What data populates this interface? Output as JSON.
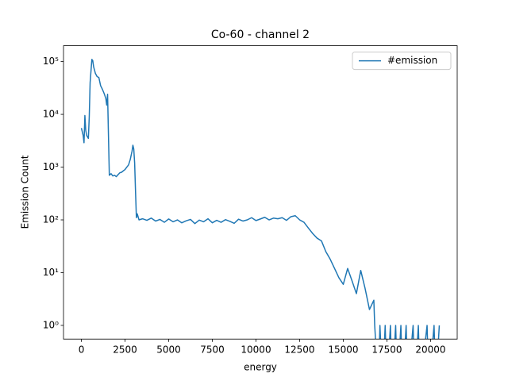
{
  "chart_data": {
    "type": "line",
    "title": "Co-60 - channel 2",
    "xlabel": "energy",
    "ylabel": "Emission Count",
    "yscale": "log",
    "legend": "upper right",
    "xlim": [
      -1025,
      21525
    ],
    "ylim": [
      0.55,
      200000
    ],
    "xticks": [
      0,
      2500,
      5000,
      7500,
      10000,
      12500,
      15000,
      17500,
      20000
    ],
    "yticks": [
      {
        "value": 1,
        "label": "10⁰"
      },
      {
        "value": 10,
        "label": "10¹"
      },
      {
        "value": 100,
        "label": "10²"
      },
      {
        "value": 1000,
        "label": "10³"
      },
      {
        "value": 10000,
        "label": "10⁴"
      },
      {
        "value": 100000,
        "label": "10⁵"
      }
    ],
    "x": [
      0,
      100,
      150,
      200,
      250,
      300,
      400,
      450,
      500,
      600,
      650,
      700,
      800,
      900,
      1000,
      1100,
      1200,
      1300,
      1400,
      1450,
      1500,
      1550,
      1600,
      1700,
      1800,
      1900,
      2000,
      2100,
      2200,
      2300,
      2400,
      2500,
      2600,
      2700,
      2800,
      2900,
      2950,
      3000,
      3050,
      3100,
      3150,
      3200,
      3300,
      3500,
      3750,
      4000,
      4250,
      4500,
      4750,
      5000,
      5250,
      5500,
      5750,
      6000,
      6250,
      6500,
      6750,
      7000,
      7250,
      7500,
      7750,
      8000,
      8250,
      8500,
      8750,
      9000,
      9250,
      9500,
      9750,
      10000,
      10250,
      10500,
      10750,
      11000,
      11250,
      11500,
      11750,
      12000,
      12250,
      12500,
      12750,
      13000,
      13250,
      13500,
      13750,
      14000,
      14250,
      14500,
      14750,
      15000,
      15250,
      15500,
      15750,
      16000,
      16250,
      16500,
      16750,
      16800,
      17000,
      17100,
      17250,
      17400,
      17500,
      17700,
      17800,
      18000,
      18100,
      18300,
      18400,
      18600,
      18700,
      19000,
      19100,
      19300,
      19400,
      19800,
      19900,
      20200,
      20300,
      20500
    ],
    "series": [
      {
        "name": "#emission",
        "color": "#1f77b4",
        "values": [
          5500,
          4000,
          2900,
          9500,
          5000,
          4000,
          3500,
          9000,
          40000,
          110000,
          105000,
          80000,
          60000,
          52000,
          50000,
          35000,
          30000,
          25000,
          20000,
          15000,
          24000,
          4000,
          700,
          750,
          680,
          700,
          660,
          720,
          780,
          800,
          850,
          900,
          1000,
          1100,
          1400,
          2000,
          2600,
          2200,
          1200,
          350,
          110,
          130,
          100,
          105,
          98,
          108,
          95,
          102,
          90,
          104,
          92,
          100,
          88,
          96,
          102,
          85,
          99,
          92,
          105,
          88,
          98,
          90,
          101,
          94,
          86,
          103,
          95,
          100,
          110,
          97,
          104,
          112,
          100,
          108,
          105,
          110,
          98,
          115,
          120,
          100,
          90,
          70,
          55,
          45,
          40,
          25,
          18,
          12,
          8,
          6,
          12,
          7,
          4,
          11,
          5,
          2,
          3,
          1,
          0,
          1,
          0,
          1,
          0,
          1,
          0,
          1,
          0,
          1,
          0,
          1,
          0,
          1,
          0,
          1,
          0,
          1,
          0,
          1,
          0,
          1
        ]
      }
    ]
  }
}
